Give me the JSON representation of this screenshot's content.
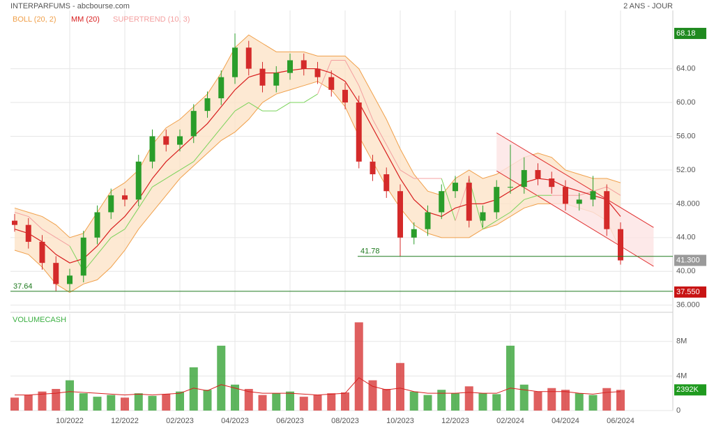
{
  "chart_data": [
    {
      "type": "candlestick",
      "title": "INTERPARFUMS - abcbourse.com",
      "subtitle": "2 ANS - JOUR",
      "categories": [
        null,
        null,
        null,
        null,
        "10/2022",
        null,
        null,
        null,
        "12/2022",
        null,
        null,
        null,
        "02/2023",
        null,
        null,
        null,
        "04/2023",
        null,
        null,
        null,
        "06/2023",
        null,
        null,
        null,
        "08/2023",
        null,
        null,
        null,
        "10/2023",
        null,
        null,
        null,
        "12/2023",
        null,
        null,
        null,
        "02/2024",
        null,
        null,
        null,
        "04/2024",
        null,
        null,
        null,
        "06/2024"
      ],
      "open": [
        46,
        45.5,
        43.5,
        41,
        38.5,
        39.5,
        44,
        47,
        49,
        48.5,
        53,
        56,
        55,
        56,
        59,
        60.5,
        63,
        66.5,
        64,
        62,
        63.5,
        65,
        64,
        63,
        61.5,
        60,
        53,
        51.5,
        49.5,
        44,
        45,
        47,
        49.5,
        50.5,
        46,
        47,
        50,
        50,
        52,
        51,
        50,
        48,
        48.5,
        49.5,
        45
      ],
      "high": [
        46.8,
        46.3,
        44.3,
        41.8,
        40.3,
        44.8,
        47.8,
        49.8,
        49.8,
        53.8,
        56.8,
        56.8,
        56.8,
        59.8,
        61.3,
        63.8,
        68.18,
        67.3,
        64.8,
        64.3,
        65.8,
        65.8,
        64.8,
        63.8,
        62.3,
        60.8,
        53.8,
        52.3,
        50.3,
        45.8,
        47.8,
        50.3,
        51.3,
        51.3,
        47.8,
        50.8,
        55,
        53.5,
        52.8,
        51.8,
        50.8,
        49.3,
        51.3,
        50.3,
        45.8
      ],
      "low": [
        44.7,
        42.7,
        40.2,
        37.64,
        37.7,
        38.7,
        43.2,
        46.2,
        47.7,
        47.7,
        52.2,
        54.2,
        54.2,
        55.2,
        58.2,
        59.7,
        62.2,
        63.2,
        61.2,
        61.2,
        62.7,
        63.2,
        62.2,
        60.7,
        59.2,
        52.2,
        50.7,
        48.7,
        41.78,
        43.2,
        44.2,
        46.2,
        48.7,
        45.2,
        45.2,
        46.2,
        49.2,
        49.2,
        50.2,
        49.2,
        47.2,
        47.2,
        47.7,
        44.2,
        40.8
      ],
      "close": [
        45.5,
        43.5,
        41,
        38.5,
        39.5,
        44,
        47,
        49,
        48.5,
        53,
        56,
        55,
        56,
        59,
        60.5,
        63,
        66.5,
        64,
        62,
        63.5,
        65,
        64,
        63,
        61.5,
        60,
        53,
        51.5,
        49.5,
        44,
        45,
        47,
        49.5,
        50.5,
        46,
        47,
        50,
        50,
        52,
        51,
        50,
        48,
        48.5,
        49.5,
        45,
        41.3
      ],
      "up_color": "#2a9d2a",
      "down_color": "#d42a2a",
      "indicators": [
        {
          "name": "BOLL (20, 2)",
          "color": "#f0a04b",
          "fill": "#fde3c8",
          "upper": [
            47.5,
            47,
            46.5,
            45.5,
            44,
            44.5,
            47,
            49.5,
            50.5,
            52,
            55,
            57,
            58,
            59.5,
            61,
            63.5,
            66.5,
            68,
            67,
            66,
            66,
            66,
            65.5,
            65.5,
            65.5,
            64,
            61,
            58,
            54.5,
            51.5,
            49.5,
            49,
            51,
            52,
            51,
            51.5,
            52.5,
            53.5,
            54,
            53.5,
            52,
            51.5,
            51,
            51,
            50.5
          ],
          "lower": [
            42.5,
            42,
            40.5,
            38.5,
            37.5,
            38.5,
            39,
            40.5,
            42.5,
            45,
            47,
            49,
            51,
            52.5,
            54,
            55.5,
            56.5,
            58,
            60,
            61,
            61.5,
            62,
            62.5,
            61.5,
            59.5,
            56,
            53,
            50,
            47.5,
            45.5,
            44.5,
            44,
            44,
            44,
            45,
            45.5,
            46.5,
            47.5,
            48,
            48,
            48,
            47.5,
            47,
            46,
            42.5
          ]
        },
        {
          "name": "MM (20)",
          "color": "#d81e1e",
          "values": [
            45,
            44.5,
            43.5,
            42,
            41,
            41.5,
            43,
            45,
            46.5,
            48.5,
            51,
            53,
            54.5,
            56,
            57.5,
            59.5,
            61.5,
            63,
            63.5,
            63.5,
            63.8,
            64,
            64,
            63.5,
            62.5,
            60,
            57,
            54,
            51,
            48.5,
            47,
            46.5,
            47.5,
            48,
            48,
            48.5,
            49.5,
            50.5,
            51,
            50.8,
            50,
            49.5,
            49,
            48.5,
            46.5
          ]
        },
        {
          "name": "SUPERTREND (10, 3)",
          "color": "#f4a0a0",
          "color_below": "#7ad35a",
          "values": [
            47,
            46.5,
            45,
            44,
            43,
            40,
            42,
            44,
            45,
            47.5,
            50,
            51,
            52,
            53,
            55,
            57,
            59,
            60,
            59,
            59,
            60,
            60,
            61,
            65,
            65,
            62,
            58,
            55,
            52,
            51,
            51,
            51,
            46,
            51,
            45,
            46,
            47,
            48.5,
            49,
            49,
            49,
            49,
            49.5,
            50,
            49
          ]
        }
      ],
      "channel": {
        "color": "#e03030",
        "fill": "#fde4e4",
        "x": [
          35,
          46.4
        ],
        "upper": [
          56.4,
          45.2
        ],
        "lower": [
          51.9,
          40.6
        ]
      },
      "levels": [
        41.78,
        37.64
      ],
      "level_color": "#1f7a1f",
      "tags": [
        68.18,
        {
          "value": 41.3,
          "label": "41.300"
        },
        {
          "value": 37.55,
          "label": "37.550"
        }
      ],
      "tag_colors": [
        "#1f8a1f",
        "#9a9a9a",
        "#c81414"
      ],
      "ylim": [
        35.4,
        70.9
      ],
      "yticks": [
        {
          "value": 64,
          "label": "64.00"
        },
        {
          "value": 60,
          "label": "60.00"
        },
        {
          "value": 56,
          "label": "56.00"
        },
        {
          "value": 52,
          "label": "52.00"
        },
        {
          "value": 48,
          "label": "48.000"
        },
        {
          "value": 44,
          "label": "44.00"
        },
        {
          "value": 40,
          "label": "40.00"
        },
        {
          "value": 36,
          "label": "36.000"
        }
      ],
      "grid": true
    },
    {
      "type": "bar",
      "title": "VOLUMECASH",
      "title_color": "#3cb043",
      "values": [
        1.5,
        1.8,
        2.2,
        2.5,
        3.5,
        2,
        1.6,
        1.8,
        1.5,
        2,
        1.7,
        1.9,
        2.2,
        5,
        2.4,
        7.5,
        3,
        2.5,
        1.8,
        2,
        2.2,
        1.6,
        1.8,
        2,
        2.1,
        10.2,
        3.5,
        2.5,
        5.5,
        2.2,
        1.8,
        2.4,
        2,
        2.8,
        2,
        1.9,
        7.5,
        3,
        2.2,
        2.6,
        2.4,
        2,
        1.8,
        2.6,
        2.392
      ],
      "average": [
        1.8,
        1.8,
        1.9,
        2,
        2.2,
        2.1,
        2,
        1.9,
        1.8,
        1.9,
        1.8,
        1.9,
        2,
        2.6,
        2.3,
        3,
        2.6,
        2.2,
        2,
        2,
        2,
        1.9,
        1.8,
        1.9,
        2,
        3.8,
        2.8,
        2.4,
        2.6,
        2.2,
        2,
        2,
        2,
        2.1,
        2,
        2,
        2.6,
        2.4,
        2.2,
        2.2,
        2.2,
        2,
        1.9,
        2.1,
        2.2
      ],
      "average_color": "#d81e1e",
      "tag": {
        "value": 2.392,
        "label": "2392K"
      },
      "tag_color": "#1f9a1f",
      "ylim": [
        0,
        11.2
      ],
      "yticks": [
        {
          "value": 8,
          "label": "8M"
        },
        {
          "value": 4,
          "label": "4M"
        },
        0
      ],
      "grid": true
    }
  ]
}
